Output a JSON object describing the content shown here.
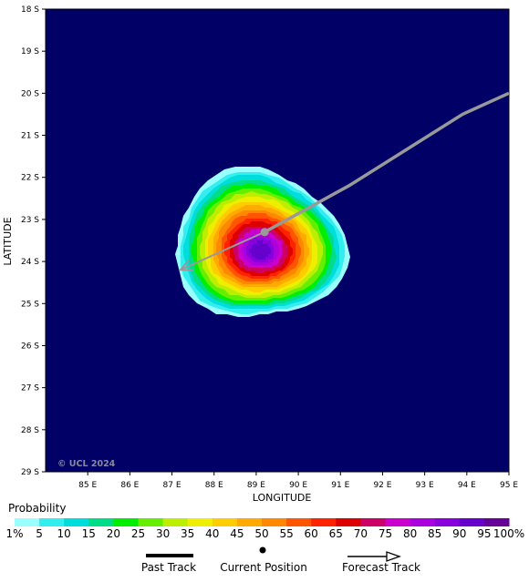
{
  "map": {
    "xlabel": "LONGITUDE",
    "ylabel": "LATITUDE",
    "copyright": "© UCL 2024",
    "background_color": "#000066",
    "lat_ticks": [
      "18 S",
      "19 S",
      "20 S",
      "21 S",
      "22 S",
      "23 S",
      "24 S",
      "25 S",
      "26 S",
      "27 S",
      "28 S",
      "29 S"
    ],
    "lon_ticks": [
      "85 E",
      "86 E",
      "87 E",
      "88 E",
      "89 E",
      "90 E",
      "91 E",
      "92 E",
      "93 E",
      "94 E",
      "95 E"
    ],
    "lat_range": [
      -18,
      -29
    ],
    "lon_range": [
      84,
      95
    ],
    "current_position": {
      "lon": 89.2,
      "lat": -23.3
    },
    "past_track": [
      {
        "lon": 95.0,
        "lat": -20.0
      },
      {
        "lon": 93.9,
        "lat": -20.5
      },
      {
        "lon": 91.2,
        "lat": -22.2
      },
      {
        "lon": 89.2,
        "lat": -23.3
      }
    ],
    "forecast_track": [
      {
        "lon": 89.2,
        "lat": -23.3
      },
      {
        "lon": 87.2,
        "lat": -24.2
      }
    ],
    "track_color": "#999999",
    "probability_field": {
      "center": {
        "lon": 89.1,
        "lat": -23.7
      },
      "note_levels": "probability contours from 1% (outer) to 90% (core)"
    }
  },
  "legend": {
    "title": "Probability",
    "labels": [
      "1%",
      "5",
      "10",
      "15",
      "20",
      "25",
      "30",
      "35",
      "40",
      "45",
      "50",
      "55",
      "60",
      "65",
      "70",
      "75",
      "80",
      "85",
      "90",
      "95",
      "100%"
    ],
    "colors": [
      "#99ffff",
      "#33eeee",
      "#00dddd",
      "#00dd88",
      "#00ee00",
      "#66ee00",
      "#bbee00",
      "#eeee00",
      "#ffcc00",
      "#ffaa00",
      "#ff8800",
      "#ff5500",
      "#ff2200",
      "#dd0000",
      "#cc0066",
      "#cc00cc",
      "#aa00dd",
      "#8800dd",
      "#6600cc",
      "#660099",
      "#660066"
    ]
  },
  "key": {
    "past_track": "Past Track",
    "current_position": "Current Position",
    "forecast_track": "Forecast Track"
  }
}
